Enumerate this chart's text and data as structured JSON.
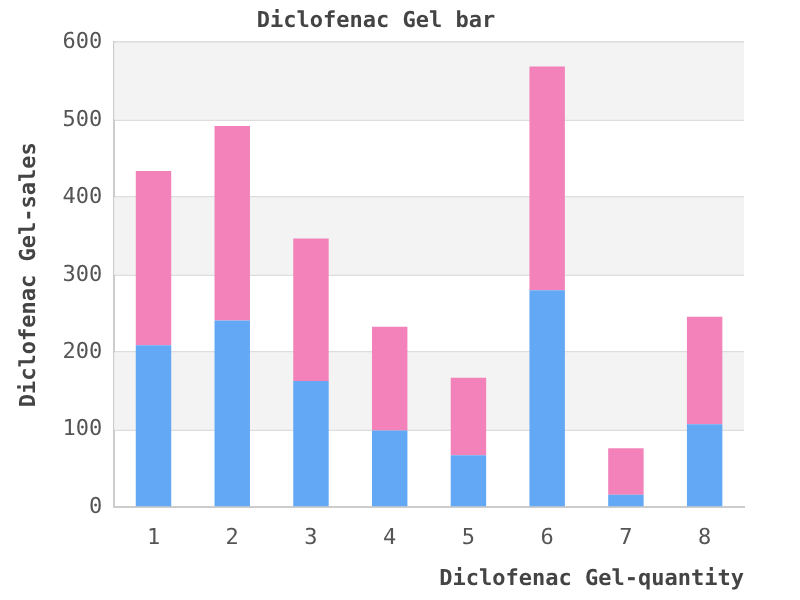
{
  "chart_data": {
    "type": "bar",
    "title": "Diclofenac Gel bar",
    "xlabel": "Diclofenac Gel-quantity",
    "ylabel": "Diclofenac Gel-sales",
    "categories": [
      "1",
      "2",
      "3",
      "4",
      "5",
      "6",
      "7",
      "8"
    ],
    "stacked": true,
    "series": [
      {
        "color": "#62a8f4",
        "values": [
          209,
          241,
          163,
          99,
          67,
          280,
          16,
          107
        ]
      },
      {
        "color": "#f282b9",
        "values": [
          225,
          251,
          184,
          134,
          100,
          289,
          60,
          139
        ]
      }
    ],
    "ylim": [
      0,
      600
    ],
    "yticks": [
      0,
      100,
      200,
      300,
      400,
      500,
      600
    ],
    "grid": "y"
  }
}
